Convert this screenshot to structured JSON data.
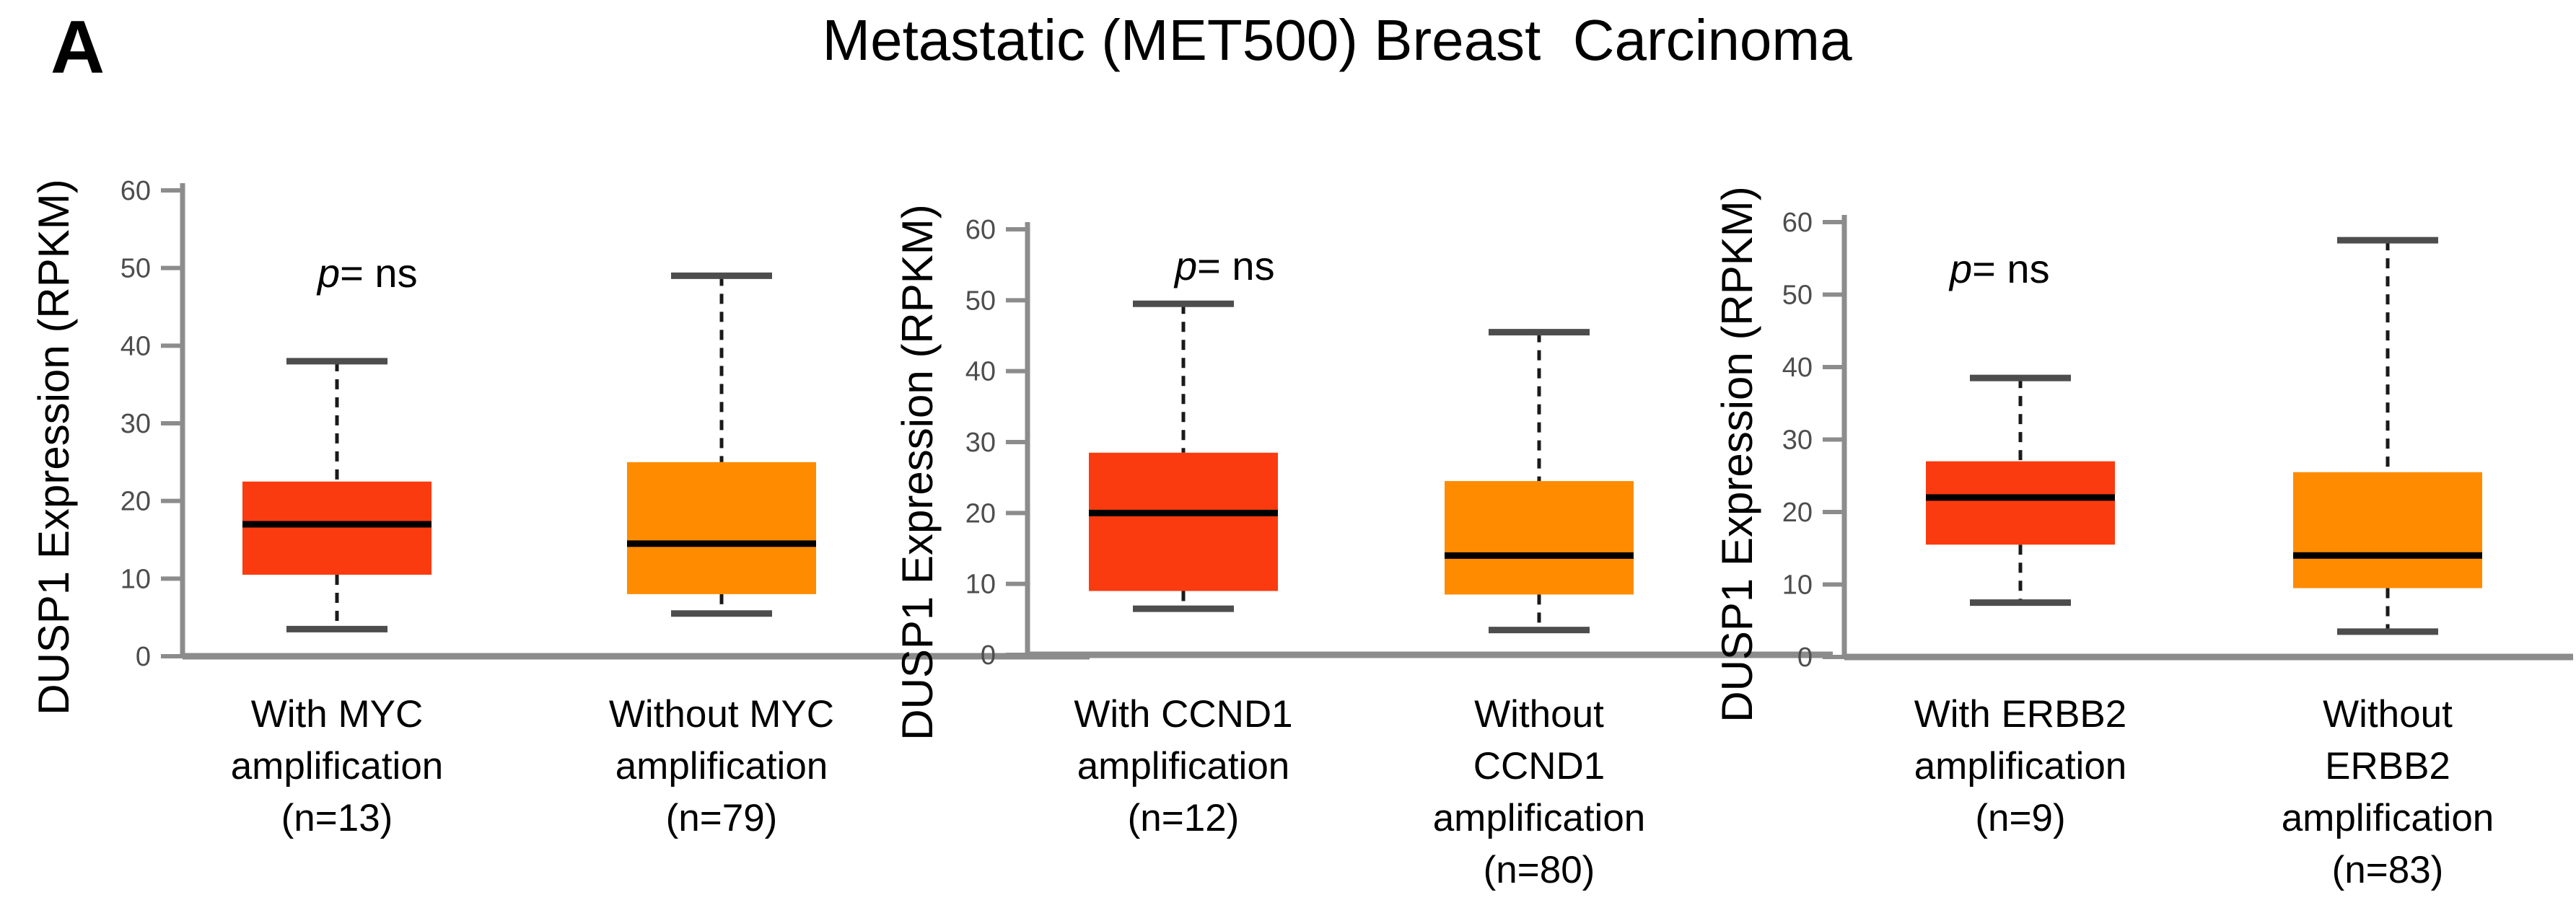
{
  "figure": {
    "panel_label": "A",
    "title": "Metastatic (MET500) Breast  Carcinoma"
  },
  "colors": {
    "with_amplification_box": "#fa3b0f",
    "without_amplification_box": "#ff8c00",
    "axis_line": "#8c8c8c",
    "whisker_cap": "#4d4d4d",
    "tick_label_text": "#4d4d4d",
    "median_line": "#000000",
    "text": "#000000"
  },
  "chart_data": [
    {
      "type": "box",
      "gene": "MYC",
      "ylabel": "DUSP1 Expression (RPKM)",
      "xlabel": "",
      "ylim": [
        0,
        60
      ],
      "yticks": [
        0,
        10,
        20,
        30,
        40,
        50,
        60
      ],
      "grid": false,
      "legend": "none",
      "p_annotation": {
        "symbol": "p",
        "text": "= ns"
      },
      "groups": [
        {
          "label_lines": [
            "With MYC",
            "amplification",
            "(n=13)"
          ],
          "n": 13,
          "color": "#fa3b0f",
          "box": {
            "whisker_low": 3.5,
            "q1": 10.5,
            "median": 17,
            "q3": 22.5,
            "whisker_high": 38
          }
        },
        {
          "label_lines": [
            "Without MYC",
            "amplification",
            "(n=79)"
          ],
          "n": 79,
          "color": "#ff8c00",
          "box": {
            "whisker_low": 5.5,
            "q1": 8,
            "median": 14.5,
            "q3": 25,
            "whisker_high": 49
          }
        }
      ]
    },
    {
      "type": "box",
      "gene": "CCND1",
      "ylabel": "DUSP1 Expression (RPKM)",
      "xlabel": "",
      "ylim": [
        0,
        60
      ],
      "yticks": [
        0,
        10,
        20,
        30,
        40,
        50,
        60
      ],
      "grid": false,
      "legend": "none",
      "p_annotation": {
        "symbol": "p",
        "text": "= ns"
      },
      "groups": [
        {
          "label_lines": [
            "With CCND1",
            "amplification",
            "(n=12)"
          ],
          "n": 12,
          "color": "#fa3b0f",
          "box": {
            "whisker_low": 6.5,
            "q1": 9,
            "median": 20,
            "q3": 28.5,
            "whisker_high": 49.5
          }
        },
        {
          "label_lines": [
            "Without",
            "CCND1",
            "amplification",
            "(n=80)"
          ],
          "n": 80,
          "color": "#ff8c00",
          "box": {
            "whisker_low": 3.5,
            "q1": 8.5,
            "median": 14,
            "q3": 24.5,
            "whisker_high": 45.5
          }
        }
      ]
    },
    {
      "type": "box",
      "gene": "ERBB2",
      "ylabel": "DUSP1 Expression (RPKM)",
      "xlabel": "",
      "ylim": [
        0,
        60
      ],
      "yticks": [
        0,
        10,
        20,
        30,
        40,
        50,
        60
      ],
      "grid": false,
      "legend": "none",
      "p_annotation": {
        "symbol": "p",
        "text": "= ns"
      },
      "groups": [
        {
          "label_lines": [
            "With ERBB2",
            "amplification",
            "(n=9)"
          ],
          "n": 9,
          "color": "#fa3b0f",
          "box": {
            "whisker_low": 7.5,
            "q1": 15.5,
            "median": 22,
            "q3": 27,
            "whisker_high": 38.5
          }
        },
        {
          "label_lines": [
            "Without",
            "ERBB2",
            "amplification",
            "(n=83)"
          ],
          "n": 83,
          "color": "#ff8c00",
          "box": {
            "whisker_low": 3.5,
            "q1": 9.5,
            "median": 14,
            "q3": 25.5,
            "whisker_high": 57.5
          }
        }
      ]
    }
  ]
}
